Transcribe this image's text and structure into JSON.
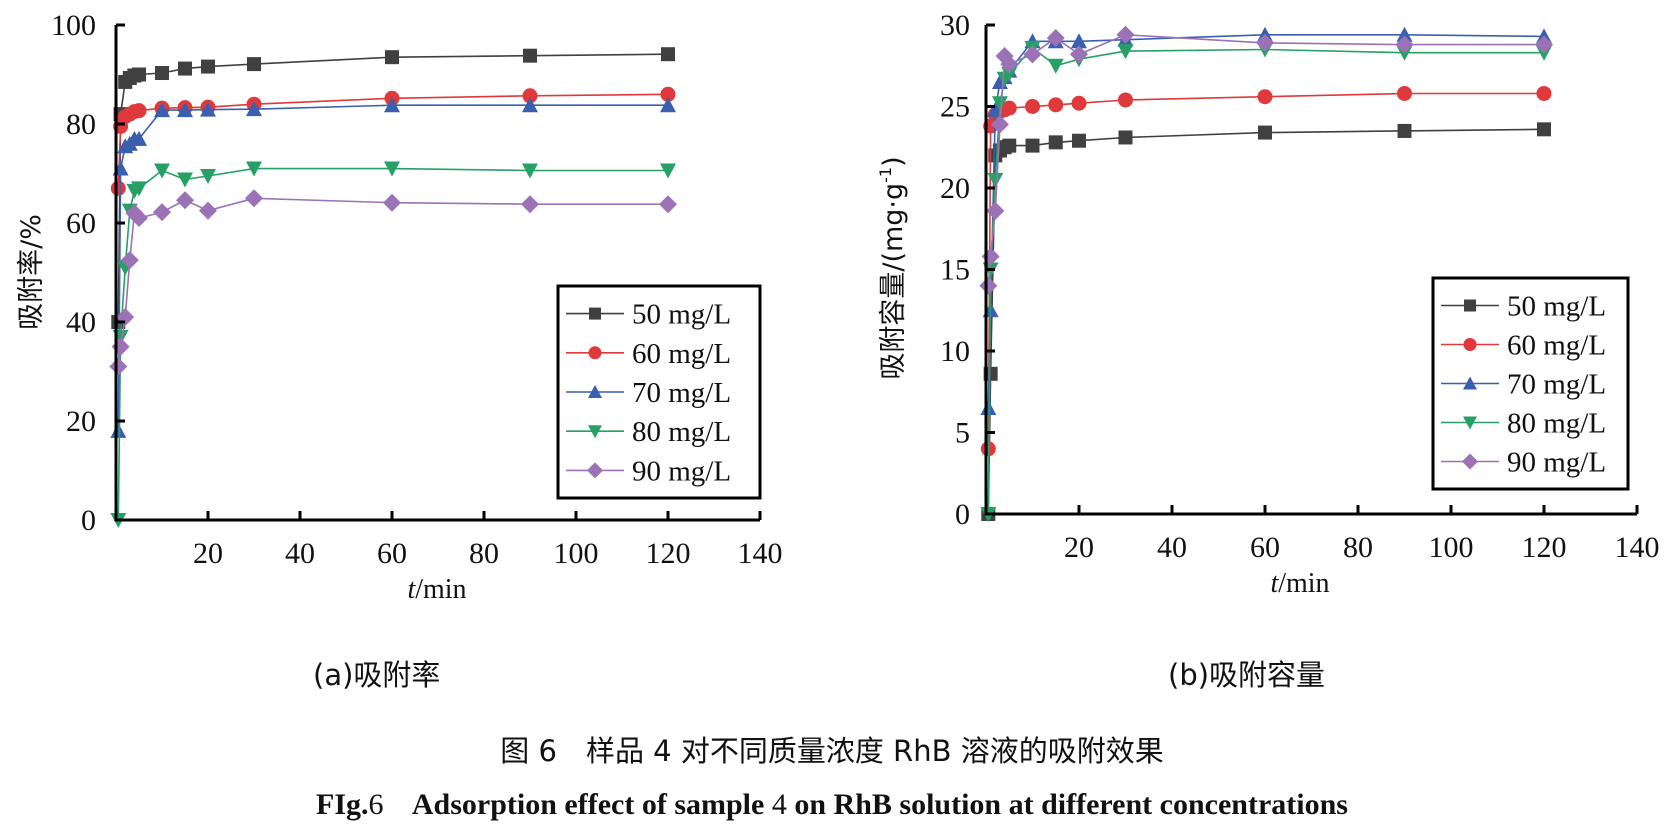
{
  "colors": {
    "50 mg/L": "#404040",
    "60 mg/L": "#e0393c",
    "70 mg/L": "#3a5fb0",
    "80 mg/L": "#27a065",
    "90 mg/L": "#9b72b5"
  },
  "chart_data": [
    {
      "type": "line",
      "panel": "a",
      "caption": "(a)吸附率",
      "xlabel_italic": "t",
      "xlabel_rest": "/min",
      "ylabel": "吸附率/%",
      "xlim": [
        0,
        140
      ],
      "ylim": [
        0,
        100
      ],
      "xticks": [
        "20",
        "40",
        "60",
        "80",
        "100",
        "120",
        "140"
      ],
      "yticks": [
        "0",
        "20",
        "40",
        "60",
        "80",
        "100"
      ],
      "legend_position": "right-middle",
      "x": [
        0.5,
        1,
        2,
        3,
        4,
        5,
        10,
        15,
        20,
        30,
        60,
        90,
        120
      ],
      "series": [
        {
          "name": "50 mg/L",
          "marker": "square",
          "values": [
            40,
            82,
            88.5,
            89.3,
            89.8,
            90.0,
            90.3,
            91.2,
            91.6,
            92.1,
            93.5,
            93.8,
            94.1
          ]
        },
        {
          "name": "60 mg/L",
          "marker": "circle",
          "values": [
            67,
            79.5,
            81.5,
            82.0,
            82.5,
            82.7,
            83.2,
            83.3,
            83.4,
            84.0,
            85.2,
            85.7,
            86.0
          ]
        },
        {
          "name": "70 mg/L",
          "marker": "triangle-up",
          "values": [
            18,
            71,
            75.5,
            76.0,
            77.0,
            77.0,
            82.8,
            82.8,
            82.9,
            83.0,
            83.8,
            83.8,
            83.8
          ]
        },
        {
          "name": "80 mg/L",
          "marker": "triangle-down",
          "values": [
            0,
            37,
            51,
            62.5,
            66.5,
            67.0,
            70.6,
            68.8,
            69.5,
            71.0,
            71.0,
            70.6,
            70.6
          ]
        },
        {
          "name": "90 mg/L",
          "marker": "diamond",
          "values": [
            31,
            35,
            41,
            52.5,
            62.0,
            61.0,
            62.2,
            64.6,
            62.5,
            65.0,
            64.1,
            63.8,
            63.8
          ]
        }
      ]
    },
    {
      "type": "line",
      "panel": "b",
      "caption": "(b)吸附容量",
      "xlabel_italic": "t",
      "xlabel_rest": "/min",
      "ylabel": "吸附容量/(mg·g",
      "ylabel_sup": "-1",
      "ylabel_end": ")",
      "xlim": [
        0,
        140
      ],
      "ylim": [
        0,
        30
      ],
      "xticks": [
        "20",
        "40",
        "60",
        "80",
        "100",
        "120",
        "140"
      ],
      "yticks": [
        "0",
        "5",
        "10",
        "15",
        "20",
        "25",
        "30"
      ],
      "legend_position": "right-middle",
      "x": [
        0.5,
        1,
        2,
        3,
        4,
        5,
        10,
        15,
        20,
        30,
        60,
        90,
        120
      ],
      "series": [
        {
          "name": "50 mg/L",
          "marker": "square",
          "values": [
            0,
            8.6,
            22.0,
            22.3,
            22.5,
            22.6,
            22.6,
            22.8,
            22.9,
            23.1,
            23.4,
            23.5,
            23.6
          ]
        },
        {
          "name": "60 mg/L",
          "marker": "circle",
          "values": [
            4,
            23.8,
            24.5,
            24.7,
            24.8,
            24.9,
            25.0,
            25.1,
            25.2,
            25.4,
            25.6,
            25.8,
            25.8
          ]
        },
        {
          "name": "70 mg/L",
          "marker": "triangle-up",
          "values": [
            6.5,
            12.5,
            24.8,
            26.5,
            26.8,
            27.2,
            29.0,
            29.0,
            29.0,
            29.1,
            29.4,
            29.4,
            29.3
          ]
        },
        {
          "name": "80 mg/L",
          "marker": "triangle-down",
          "values": [
            0,
            15.0,
            20.5,
            25.2,
            26.7,
            27.0,
            28.6,
            27.5,
            27.9,
            28.4,
            28.5,
            28.3,
            28.3
          ]
        },
        {
          "name": "90 mg/L",
          "marker": "diamond",
          "values": [
            14,
            15.8,
            18.6,
            23.9,
            28.1,
            27.6,
            28.2,
            29.2,
            28.2,
            29.4,
            28.9,
            28.8,
            28.8
          ]
        }
      ]
    }
  ],
  "figure": {
    "cn_title": "图 6　样品 4 对不同质量浓度 RhB 溶液的吸附效果",
    "en_label": "FIg.",
    "en_num": "6",
    "en_text": "Adsorption effect of sample",
    "en_num2": "4",
    "en_text2": "on RhB solution at different concentrations"
  }
}
